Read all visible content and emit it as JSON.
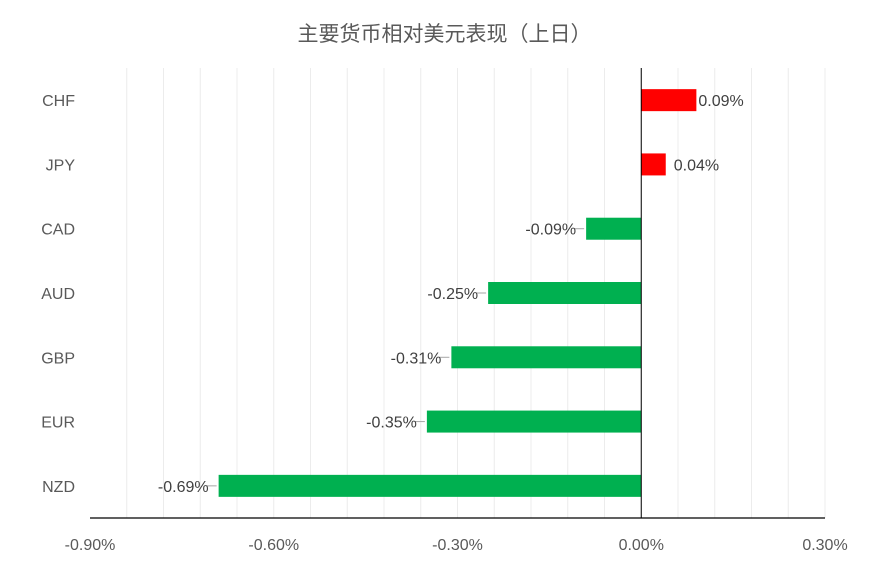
{
  "chart_data": {
    "type": "bar",
    "orientation": "horizontal",
    "title": "主要货币相对美元表现（上日）",
    "categories": [
      "CHF",
      "JPY",
      "CAD",
      "AUD",
      "GBP",
      "EUR",
      "NZD"
    ],
    "values": [
      0.09,
      0.04,
      -0.09,
      -0.25,
      -0.31,
      -0.35,
      -0.69
    ],
    "data_labels": [
      "0.09%",
      "0.04%",
      "-0.09%",
      "-0.25%",
      "-0.31%",
      "-0.35%",
      "-0.69%"
    ],
    "xlim": [
      -0.9,
      0.3
    ],
    "x_ticks": [
      -0.9,
      -0.6,
      -0.3,
      0.0,
      0.3
    ],
    "x_tick_labels": [
      "-0.90%",
      "-0.60%",
      "-0.30%",
      "0.00%",
      "0.30%"
    ],
    "xlabel": "",
    "ylabel": "",
    "grid": "vertical minor gridlines",
    "legend": "none",
    "colors": {
      "positive": "#ff0000",
      "negative": "#00b050",
      "text": "#595959"
    }
  }
}
